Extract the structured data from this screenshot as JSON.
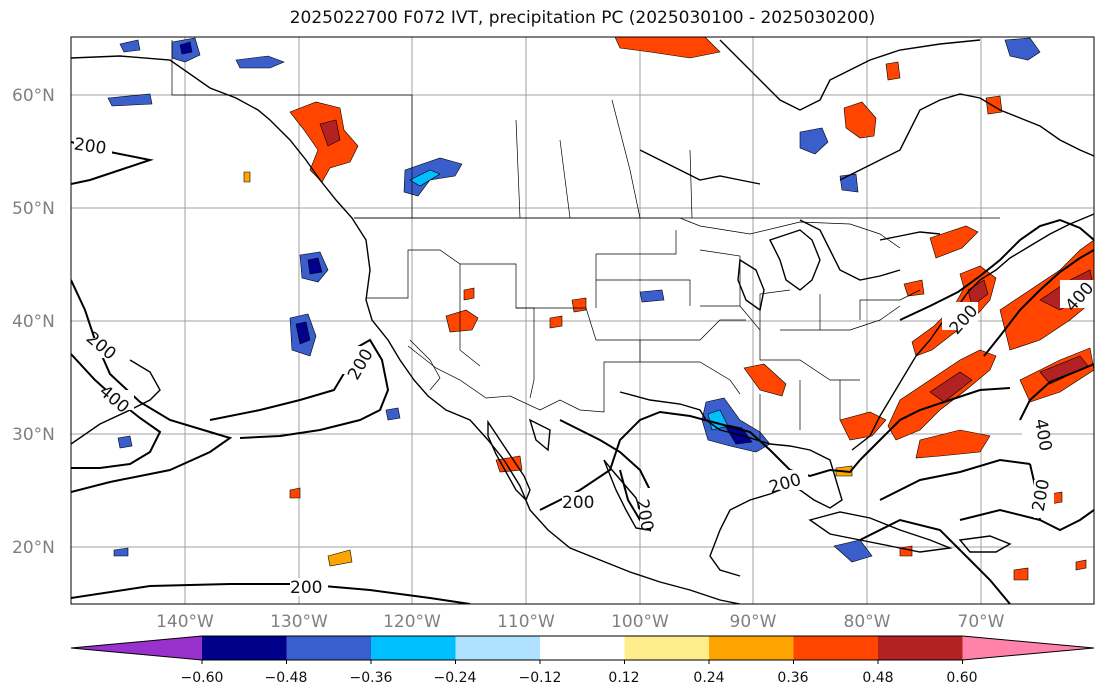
{
  "title": "2025022700 F072 IVT, precipitation PC (2025030100 - 2025030200)",
  "lat_ticks": [
    "60°N",
    "50°N",
    "40°N",
    "30°N",
    "20°N"
  ],
  "lon_ticks": [
    "140°W",
    "130°W",
    "120°W",
    "110°W",
    "100°W",
    "90°W",
    "80°W",
    "70°W"
  ],
  "contour_labels": [
    "200",
    "200",
    "400",
    "200",
    "200",
    "200",
    "200",
    "200",
    "200",
    "400",
    "400",
    "200"
  ],
  "colorbar": {
    "ticks": [
      "−0.60",
      "−0.48",
      "−0.36",
      "−0.24",
      "−0.12",
      "0.12",
      "0.24",
      "0.36",
      "0.48",
      "0.60"
    ],
    "colors": [
      "#9932cc",
      "#00008b",
      "#3a5fcd",
      "#00bfff",
      "#b0e2ff",
      "#ffffff",
      "#ffec8b",
      "#ffa500",
      "#ff4500",
      "#b22222",
      "#ff82ab"
    ]
  },
  "colors": {
    "grid": "#a0a0a0",
    "coast": "#000000",
    "contour": "#000000"
  }
}
